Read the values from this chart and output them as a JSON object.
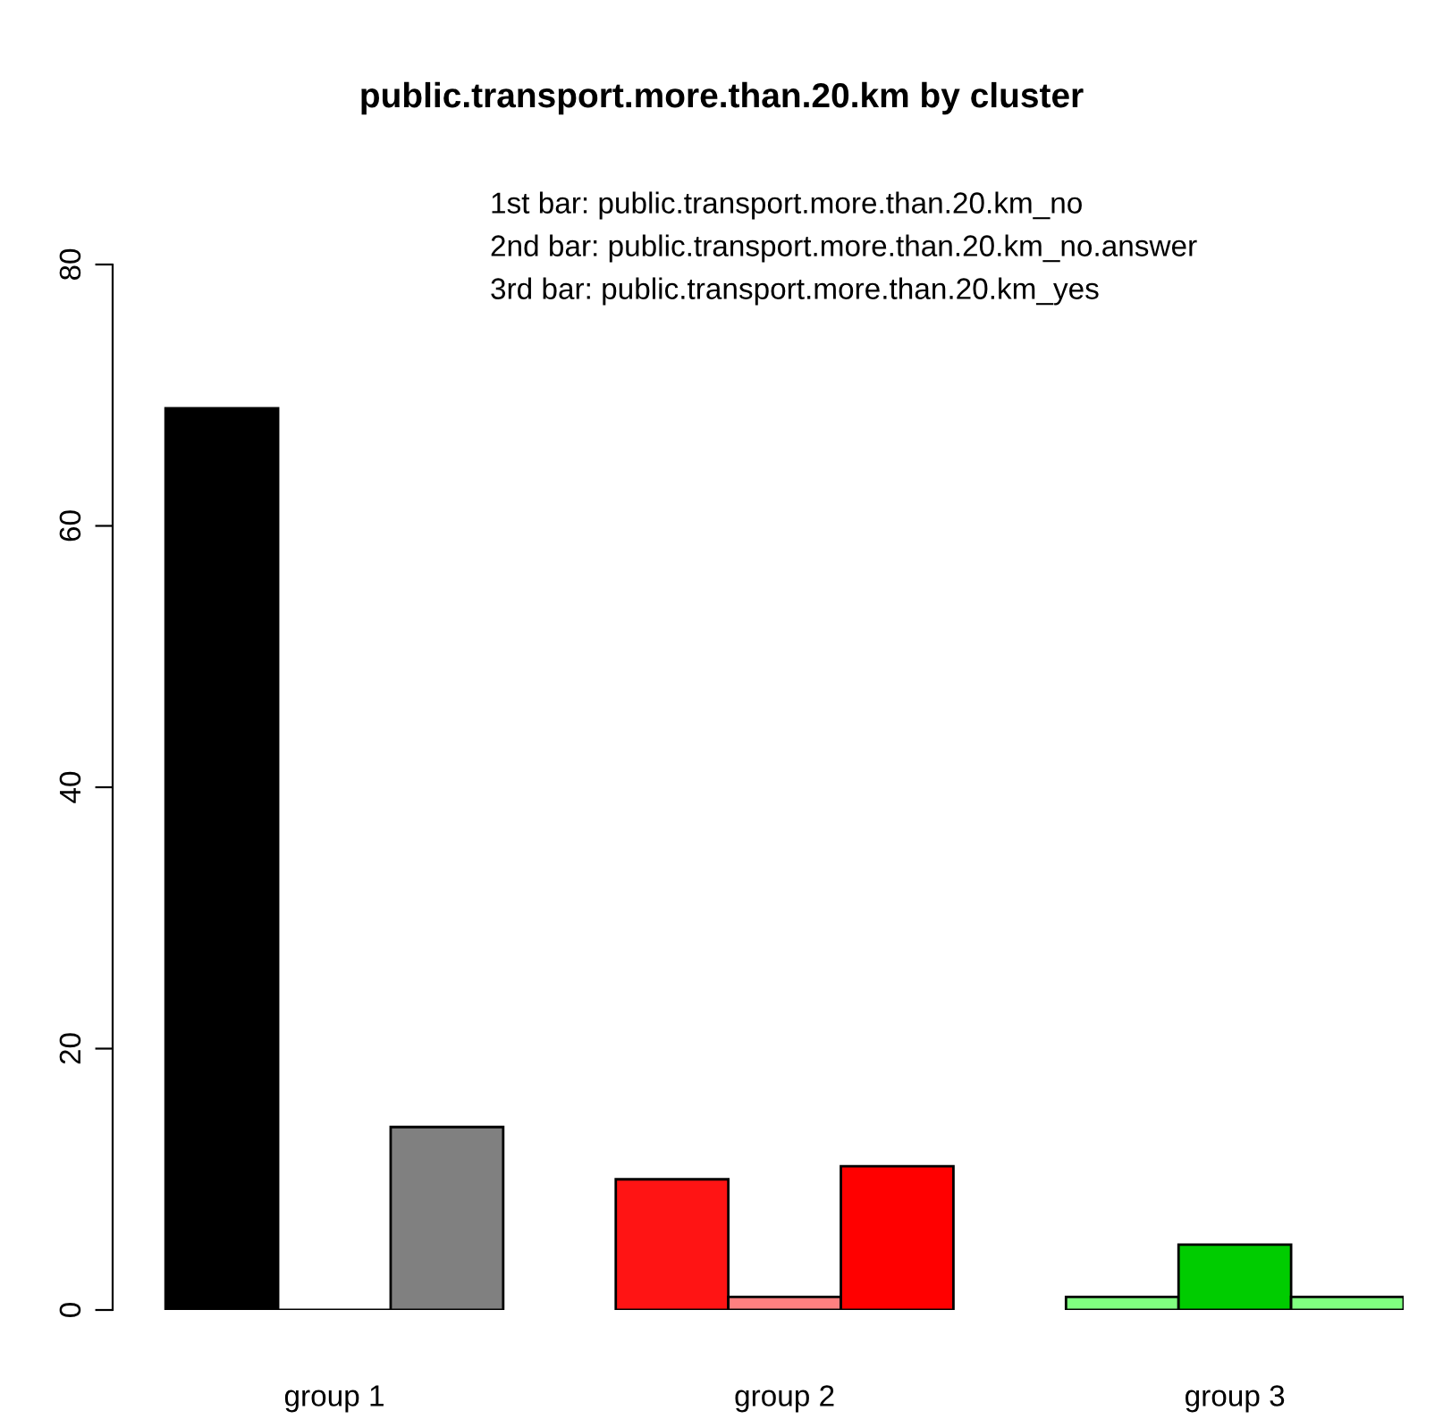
{
  "chart_data": {
    "type": "bar",
    "title": "public.transport.more.than.20.km by cluster",
    "categories": [
      "group 1",
      "group 2",
      "group 3"
    ],
    "series": [
      {
        "values": [
          69,
          10,
          1
        ],
        "colors": [
          "#000000",
          "#ff1414",
          "#80ff80"
        ]
      },
      {
        "values": [
          0,
          1,
          5
        ],
        "colors": [
          null,
          "#ff8080",
          "#00cc00"
        ]
      },
      {
        "values": [
          14,
          11,
          1
        ],
        "colors": [
          "#808080",
          "#ff0000",
          "#80ff80"
        ]
      }
    ],
    "ylim": [
      0,
      80
    ],
    "yticks": [
      0,
      20,
      40,
      60,
      80
    ],
    "grid": false,
    "legend": false,
    "annotations": [
      "1st bar: public.transport.more.than.20.km_no",
      "2nd bar: public.transport.more.than.20.km_no.answer",
      "3rd bar: public.transport.more.than.20.km_yes"
    ]
  }
}
